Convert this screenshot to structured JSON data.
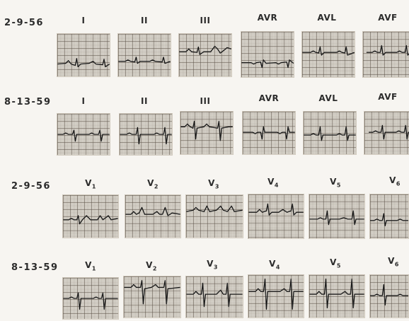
{
  "rows": [
    {
      "date": "2-9-56",
      "leads": [
        "I",
        "II",
        "III",
        "AVR",
        "AVL",
        "AVF"
      ]
    },
    {
      "date": "8-13-59",
      "leads": [
        "I",
        "II",
        "III",
        "AVR",
        "AVL",
        "AVF"
      ]
    },
    {
      "date": "2-9-56",
      "leads": [
        {
          "base": "V",
          "sub": "1"
        },
        {
          "base": "V",
          "sub": "2"
        },
        {
          "base": "V",
          "sub": "3"
        },
        {
          "base": "V",
          "sub": "4"
        },
        {
          "base": "V",
          "sub": "5"
        },
        {
          "base": "V",
          "sub": "6"
        }
      ]
    },
    {
      "date": "8-13-59",
      "leads": [
        {
          "base": "V",
          "sub": "1"
        },
        {
          "base": "V",
          "sub": "2"
        },
        {
          "base": "V",
          "sub": "3"
        },
        {
          "base": "V",
          "sub": "4"
        },
        {
          "base": "V",
          "sub": "5"
        },
        {
          "base": "V",
          "sub": "6"
        }
      ]
    }
  ]
}
